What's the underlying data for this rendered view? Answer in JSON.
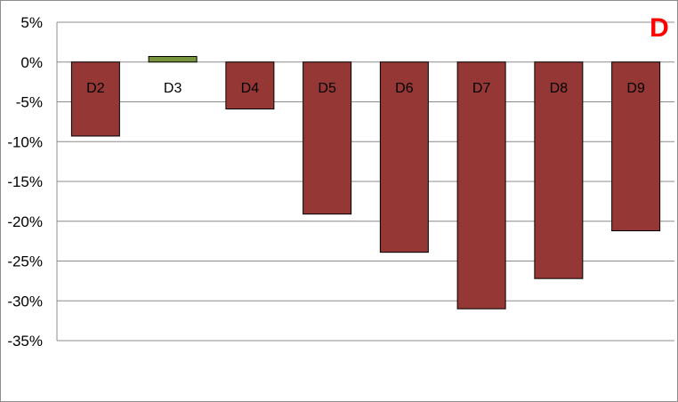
{
  "chart_data": {
    "type": "bar",
    "panel_label": "D",
    "categories": [
      "D2",
      "D3",
      "D4",
      "D5",
      "D6",
      "D7",
      "D8",
      "D9"
    ],
    "values": [
      -9.3,
      0.7,
      -5.9,
      -19.1,
      -23.9,
      -31.0,
      -27.2,
      -21.2
    ],
    "ylim": [
      -35,
      5
    ],
    "yticks": [
      5,
      0,
      -5,
      -10,
      -15,
      -20,
      -25,
      -30,
      -35
    ],
    "ytick_suffix": "%",
    "grid": true,
    "legend": "none",
    "category_labels_position": "inside-top-at-zero-line"
  },
  "colors": {
    "negative_bar": "#953735",
    "positive_bar": "#77933c",
    "bar_outline": "#000000",
    "gridline": "#8c8c8c",
    "panel_label": "#ff0000"
  }
}
